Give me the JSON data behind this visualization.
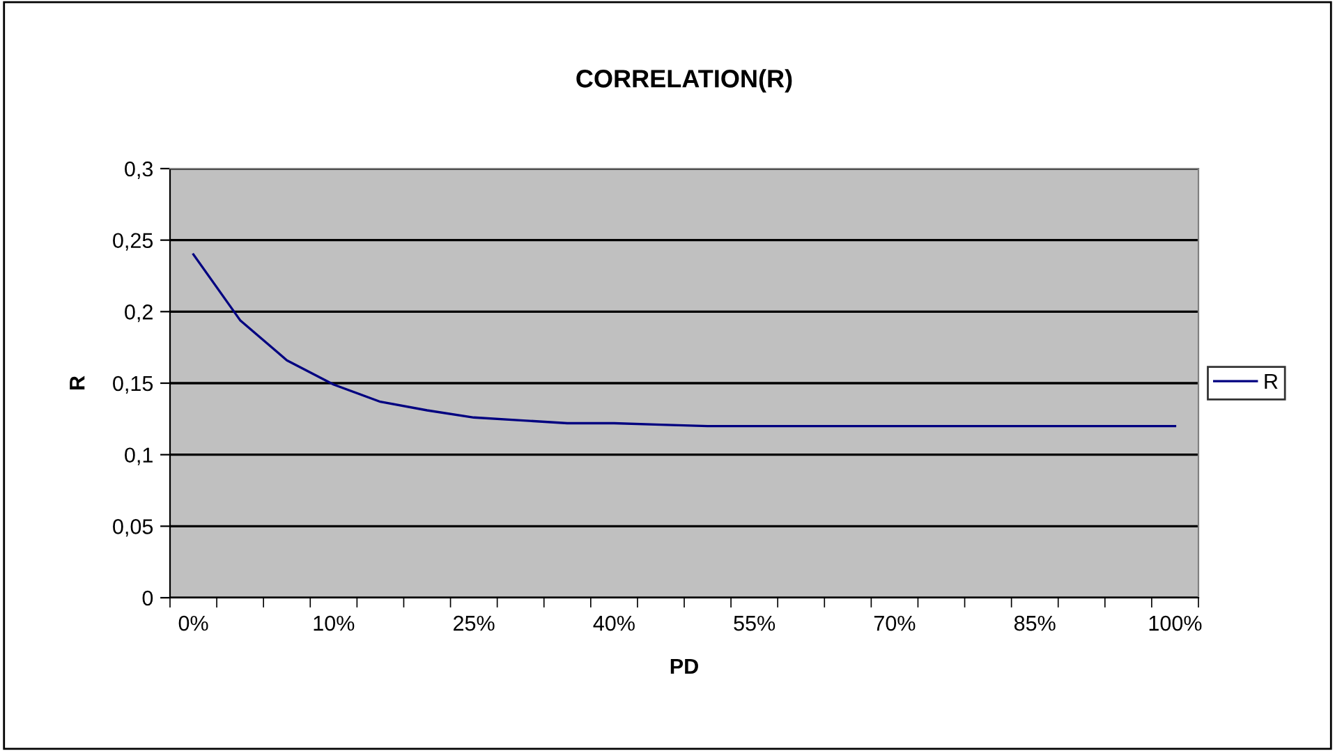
{
  "chart_data": {
    "type": "line",
    "title": "CORRELATION(R)",
    "xlabel": "PD",
    "ylabel": "R",
    "categories": [
      "0%",
      null,
      null,
      "10%",
      null,
      null,
      "25%",
      null,
      null,
      "40%",
      null,
      null,
      "55%",
      null,
      null,
      "70%",
      null,
      null,
      "85%",
      null,
      null,
      "100%"
    ],
    "series": [
      {
        "name": "R",
        "color": "#000080",
        "values": [
          0.24,
          0.194,
          0.166,
          0.149,
          0.137,
          0.131,
          0.126,
          0.124,
          0.122,
          0.122,
          0.121,
          0.12,
          0.12,
          0.12,
          0.12,
          0.12,
          0.12,
          0.12,
          0.12,
          0.12,
          0.12,
          0.12
        ]
      }
    ],
    "ylim": [
      0,
      0.3
    ],
    "yticks": [
      {
        "value": 0,
        "label": "0"
      },
      {
        "value": 0.05,
        "label": "0,05"
      },
      {
        "value": 0.1,
        "label": "0,1"
      },
      {
        "value": 0.15,
        "label": "0,15"
      },
      {
        "value": 0.2,
        "label": "0,2"
      },
      {
        "value": 0.25,
        "label": "0,25"
      },
      {
        "value": 0.3,
        "label": "0,3"
      }
    ],
    "grid": "y",
    "legend": "right",
    "marker": "none",
    "line_style": "solid"
  }
}
